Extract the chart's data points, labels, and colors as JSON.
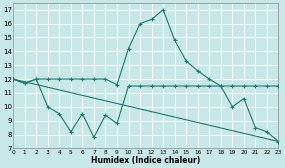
{
  "xlabel": "Humidex (Indice chaleur)",
  "background_color": "#c8e8e8",
  "grid_color": "#ffffff",
  "line_color": "#1a7a6e",
  "xlim": [
    0,
    23
  ],
  "ylim": [
    7,
    17.5
  ],
  "yticks": [
    7,
    8,
    9,
    10,
    11,
    12,
    13,
    14,
    15,
    16,
    17
  ],
  "xticks": [
    0,
    1,
    2,
    3,
    4,
    5,
    6,
    7,
    8,
    9,
    10,
    11,
    12,
    13,
    14,
    15,
    16,
    17,
    18,
    19,
    20,
    21,
    22,
    23
  ],
  "line1_x": [
    0,
    1,
    2,
    3,
    4,
    5,
    6,
    7,
    8,
    9,
    10,
    11,
    12,
    13,
    14,
    15,
    16,
    17,
    18,
    19,
    20,
    21,
    22,
    23
  ],
  "line1_y": [
    12.0,
    11.7,
    12.0,
    12.0,
    12.0,
    12.0,
    12.0,
    12.0,
    12.0,
    11.6,
    14.2,
    16.0,
    16.3,
    17.0,
    14.8,
    13.3,
    12.6,
    12.0,
    11.5,
    11.5,
    11.5,
    11.5,
    11.5,
    11.5
  ],
  "line2_x": [
    0,
    1,
    2,
    3,
    4,
    5,
    6,
    7,
    8,
    9,
    10,
    11,
    12,
    13,
    14,
    15,
    16,
    17,
    18,
    19,
    20,
    21,
    22,
    23
  ],
  "line2_y": [
    12.0,
    11.7,
    12.0,
    10.0,
    9.5,
    8.2,
    9.5,
    7.8,
    9.4,
    8.8,
    11.5,
    11.5,
    11.5,
    11.5,
    11.5,
    11.5,
    11.5,
    11.5,
    11.5,
    10.0,
    10.6,
    8.5,
    8.2,
    7.5
  ],
  "line3_x": [
    0,
    23
  ],
  "line3_y": [
    12.0,
    7.5
  ]
}
